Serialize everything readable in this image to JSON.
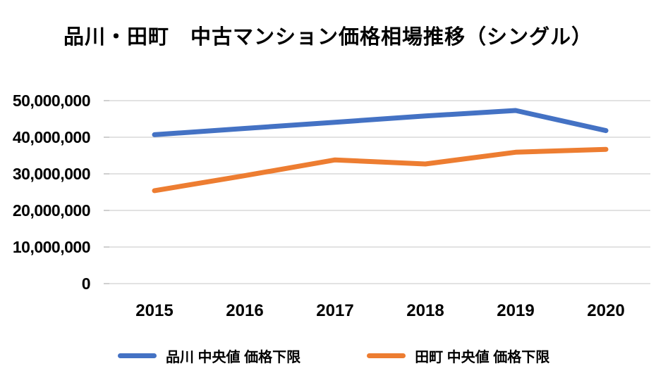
{
  "chart_data": {
    "type": "line",
    "title": "品川・田町　中古マンション価格相場推移（シングル）",
    "x": [
      "2015",
      "2016",
      "2017",
      "2018",
      "2019",
      "2020"
    ],
    "series": [
      {
        "name": "品川 中央値 価格下限",
        "color": "#4472C4",
        "values": [
          40700000,
          42400000,
          44100000,
          45800000,
          47300000,
          41800000
        ]
      },
      {
        "name": "田町 中央値 価格下限",
        "color": "#ED7D31",
        "values": [
          25400000,
          29500000,
          33800000,
          32700000,
          35900000,
          36700000
        ]
      }
    ],
    "ylim": [
      0,
      50000000
    ],
    "ytick_interval": 10000000,
    "ytick_labels_top_to_bottom": [
      "50,000,000",
      "40,000,000",
      "30,000,000",
      "20,000,000",
      "10,000,000",
      "0"
    ],
    "xlabel": "",
    "ylabel": "",
    "grid": true,
    "gridline_color": "#D9D9D9",
    "tick_color": "#BFBFBF",
    "legend_position": "bottom"
  }
}
